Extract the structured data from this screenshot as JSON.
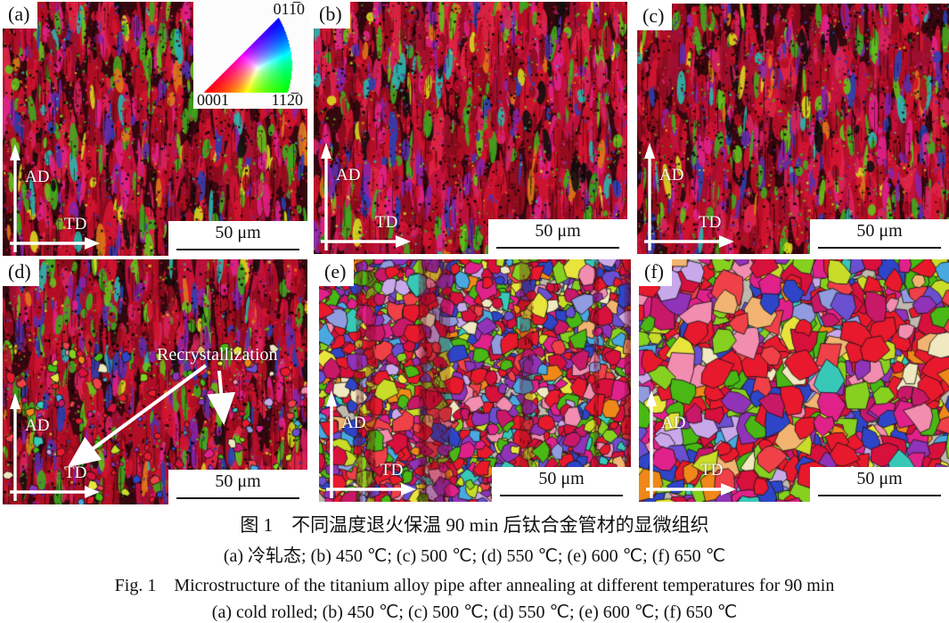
{
  "figure": {
    "caption_cn_title": "图 1 不同温度退火保温 90 min 后钛合金管材的显微组织",
    "caption_cn_sub": "(a) 冷轧态; (b) 450 ℃; (c) 500 ℃; (d) 550 ℃; (e) 600 ℃; (f) 650 ℃",
    "caption_en_title": "Fig. 1 Microstructure of the titanium alloy pipe after annealing at different temperatures for 90 min",
    "caption_en_sub": "(a) cold rolled; (b) 450 ℃; (c) 500 ℃; (d) 550 ℃; (e) 600 ℃; (f) 650 ℃"
  },
  "ipf_legend": {
    "top_label": "011̅0",
    "bottom_left_label": "0001",
    "bottom_right_label": "112̅0",
    "corner_colors": {
      "c0001": "#ff0000",
      "c1120": "#00c800",
      "c0110": "#2020ff"
    }
  },
  "panels": [
    {
      "label": "(a)",
      "scale_bar": "50 μm",
      "axis_vertical": "AD",
      "axis_horizontal": "TD",
      "texture": {
        "type": "deformed",
        "seed": 11,
        "coarse": 0.85
      }
    },
    {
      "label": "(b)",
      "scale_bar": "50 μm",
      "axis_vertical": "AD",
      "axis_horizontal": "TD",
      "texture": {
        "type": "deformed",
        "seed": 22,
        "coarse": 1.25
      }
    },
    {
      "label": "(c)",
      "scale_bar": "50 μm",
      "axis_vertical": "AD",
      "axis_horizontal": "TD",
      "texture": {
        "type": "deformed",
        "seed": 33,
        "coarse": 1.1
      }
    },
    {
      "label": "(d)",
      "scale_bar": "50 μm",
      "axis_vertical": "AD",
      "axis_horizontal": "TD",
      "annotation": "Recrystallization",
      "texture": {
        "type": "deformed",
        "seed": 44,
        "coarse": 1.0,
        "spots": true
      }
    },
    {
      "label": "(e)",
      "scale_bar": "50 μm",
      "axis_vertical": "AD",
      "axis_horizontal": "TD",
      "texture": {
        "type": "recrystallized",
        "seed": 55,
        "rmin": 5,
        "rmax": 13,
        "streaks": true
      }
    },
    {
      "label": "(f)",
      "scale_bar": "50 μm",
      "axis_vertical": "AD",
      "axis_horizontal": "TD",
      "texture": {
        "type": "recrystallized",
        "seed": 66,
        "rmin": 9,
        "rmax": 20,
        "streaks": false
      }
    }
  ]
}
